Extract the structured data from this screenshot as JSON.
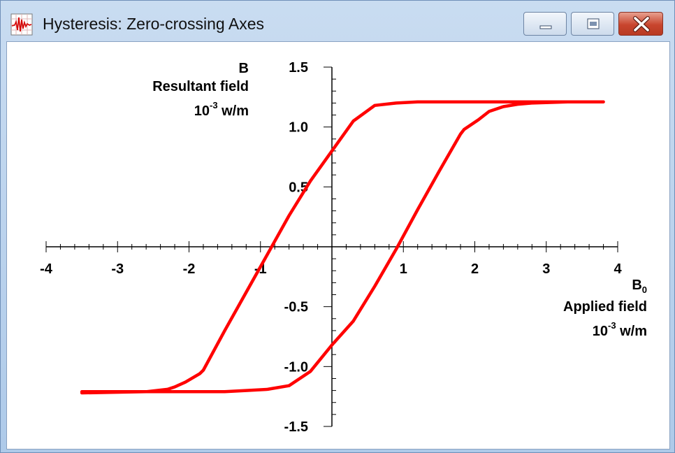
{
  "window": {
    "title": "Hysteresis: Zero-crossing Axes",
    "icon": "waveform-app-icon",
    "controls": [
      "minimize",
      "maximize",
      "close"
    ]
  },
  "colors": {
    "curve": "#ff0000",
    "axes": "#000000",
    "background": "#ffffff"
  },
  "chart_data": {
    "type": "line",
    "axes_style": "zero-crossing",
    "grid": false,
    "legend": "none",
    "xlim": [
      -4,
      4
    ],
    "ylim": [
      -1.5,
      1.5
    ],
    "x_ticks": [
      -4,
      -3,
      -2,
      -1,
      1,
      2,
      3,
      4
    ],
    "x_tick_labels": [
      "-4",
      "-3",
      "-2",
      "-1",
      "1",
      "2",
      "3",
      "4"
    ],
    "y_ticks": [
      -1.5,
      -1.0,
      -0.5,
      0.5,
      1.0,
      1.5
    ],
    "y_tick_labels": [
      "-1.5",
      "-1.0",
      "-0.5",
      "0.5",
      "1.0",
      "1.5"
    ],
    "x_minor_step": 0.2,
    "y_minor_step": 0.1,
    "ylabel": {
      "symbol": "B",
      "name": "Resultant field",
      "unit_base": "10",
      "unit_exp": "-3",
      "unit_rest": " w/m"
    },
    "xlabel": {
      "symbol": "B",
      "symbol_sub": "0",
      "name": "Applied field",
      "unit_base": "10",
      "unit_exp": "-3",
      "unit_rest": " w/m"
    },
    "series": [
      {
        "x": [
          -3.5,
          -2.6,
          -2.3,
          -2.2,
          -2.05,
          -1.85,
          -1.8,
          -1.5,
          -1.2,
          -0.9,
          -0.6,
          -0.3,
          0.0,
          0.3,
          0.6,
          0.9,
          1.2,
          1.5,
          1.8,
          2.1,
          2.4,
          2.8,
          3.3,
          3.8
        ],
        "y": [
          -1.22,
          -1.21,
          -1.19,
          -1.17,
          -1.13,
          -1.06,
          -1.03,
          -0.7,
          -0.38,
          -0.06,
          0.26,
          0.55,
          0.8,
          1.05,
          1.18,
          1.2,
          1.21,
          1.21,
          1.21,
          1.21,
          1.21,
          1.21,
          1.21,
          1.21
        ]
      },
      {
        "x": [
          3.8,
          3.3,
          2.8,
          2.6,
          2.4,
          2.2,
          2.05,
          1.85,
          1.8,
          1.5,
          1.2,
          0.9,
          0.6,
          0.3,
          0.0,
          -0.3,
          -0.6,
          -0.9,
          -1.2,
          -1.5,
          -2.0,
          -2.6,
          -3.5
        ],
        "y": [
          1.21,
          1.21,
          1.2,
          1.19,
          1.17,
          1.13,
          1.06,
          0.98,
          0.94,
          0.63,
          0.31,
          -0.02,
          -0.33,
          -0.62,
          -0.82,
          -1.04,
          -1.16,
          -1.19,
          -1.2,
          -1.21,
          -1.21,
          -1.21,
          -1.21
        ]
      }
    ]
  }
}
